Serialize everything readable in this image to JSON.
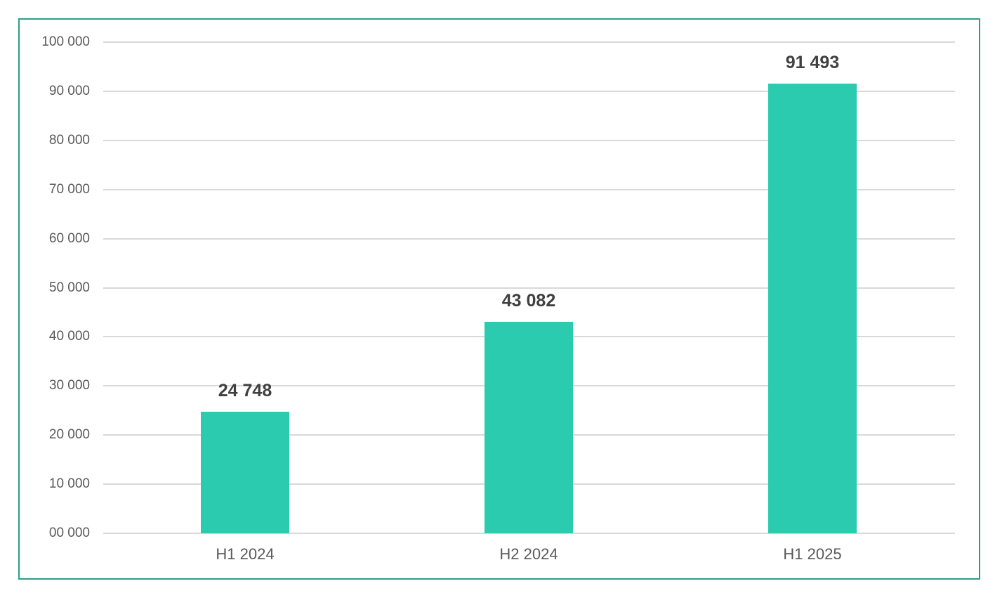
{
  "chart_data": {
    "type": "bar",
    "title": "",
    "xlabel": "",
    "ylabel": "",
    "categories": [
      "H1 2024",
      "H2 2024",
      "H1 2025"
    ],
    "values": [
      24748,
      43082,
      91493
    ],
    "data_labels": [
      "24 748",
      "43 082",
      "91 493"
    ],
    "ylim": [
      0,
      100000
    ],
    "yticks": [
      0,
      10000,
      20000,
      30000,
      40000,
      50000,
      60000,
      70000,
      80000,
      90000,
      100000
    ],
    "ytick_labels": [
      "00 000",
      "10 000",
      "20 000",
      "30 000",
      "40 000",
      "50 000",
      "60 000",
      "70 000",
      "80 000",
      "90 000",
      "100 000"
    ],
    "grid": true,
    "legend": null,
    "bar_color": "#2bcbb0",
    "frame_color": "#2a9d8f"
  }
}
